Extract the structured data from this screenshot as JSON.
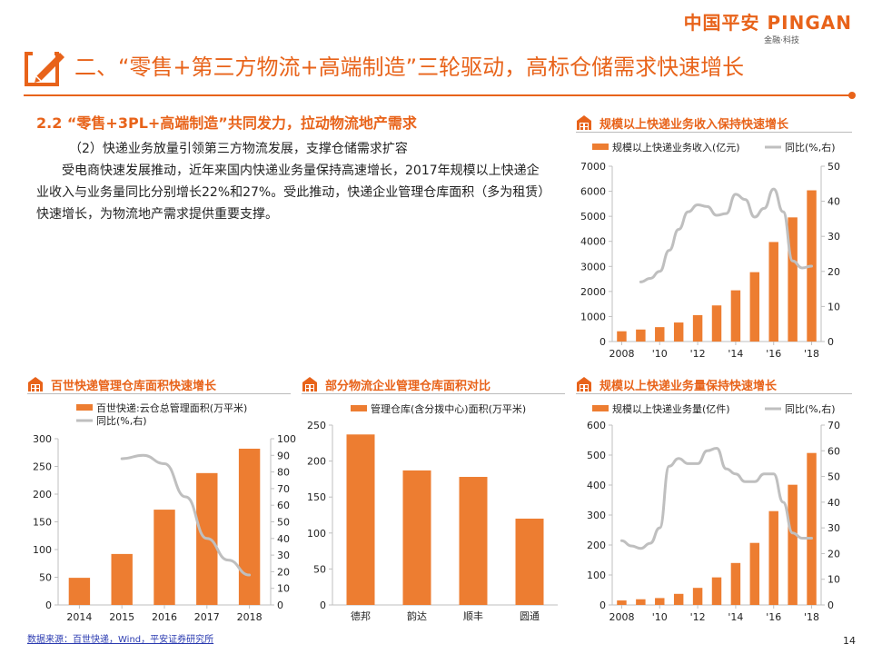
{
  "header": {
    "logo_text": "中国平安 PINGAN",
    "logo_sub": "金融·科技",
    "title": "二、“零售+第三方物流+高端制造”三轮驱动，高标仓储需求快速增长"
  },
  "section": {
    "heading": "2.2 “零售+3PL+高端制造”共同发力，拉动物流地产需求",
    "subheading": "（2）快递业务放量引领第三方物流发展，支撑仓储需求扩容",
    "body": "受电商快速发展推动，近年来国内快递业务量保持高速增长，2017年规模以上快递企业收入与业务量同比分别增长22%和27%。受此推动，快递企业管理仓库面积（多为租赁）快速增长，为物流地产需求提供重要支撑。"
  },
  "footer": {
    "source": "数据来源：百世快递，Wind，平安证券研究所",
    "page_number": "14"
  },
  "colors": {
    "accent": "#e8631a",
    "bar": "#ed7d31",
    "line": "#bfbfbf"
  },
  "chart_data": [
    {
      "id": "revenue",
      "type": "bar+line",
      "title": "规模以上快递业务收入保持快速增长",
      "x": [
        2008,
        2009,
        2010,
        2011,
        2012,
        2013,
        2014,
        2015,
        2016,
        2017,
        2018
      ],
      "x_tick_labels": [
        "2008",
        "'10",
        "'12",
        "'14",
        "'16",
        "'18"
      ],
      "x_tick_positions": [
        2008,
        2010,
        2012,
        2014,
        2016,
        2018
      ],
      "series": [
        {
          "name": "规模以上快递业务收入(亿元)",
          "kind": "bar",
          "axis": "left",
          "values": [
            410,
            480,
            575,
            760,
            1055,
            1442,
            2045,
            2770,
            3974,
            4957,
            6038
          ]
        },
        {
          "name": "同比(%,右)",
          "kind": "line",
          "axis": "right",
          "points": [
            [
              2009,
              17
            ],
            [
              2009.5,
              18
            ],
            [
              2010,
              20
            ],
            [
              2010.5,
              26
            ],
            [
              2011,
              32
            ],
            [
              2011.5,
              37
            ],
            [
              2012,
              39
            ],
            [
              2012.5,
              38.5
            ],
            [
              2013,
              36
            ],
            [
              2013.5,
              36.5
            ],
            [
              2014,
              42
            ],
            [
              2014.5,
              40.5
            ],
            [
              2015,
              35.5
            ],
            [
              2015.5,
              38
            ],
            [
              2016,
              43.5
            ],
            [
              2016.5,
              37
            ],
            [
              2017,
              23
            ],
            [
              2017.5,
              21
            ],
            [
              2018,
              21.5
            ]
          ]
        }
      ],
      "left_axis": {
        "min": 0,
        "max": 7000,
        "ticks": [
          0,
          1000,
          2000,
          3000,
          4000,
          5000,
          6000,
          7000
        ]
      },
      "right_axis": {
        "min": 0,
        "max": 50,
        "ticks": [
          0,
          10,
          20,
          30,
          40,
          50
        ]
      },
      "legend": "top"
    },
    {
      "id": "best",
      "type": "bar+line",
      "title": "百世快递管理仓库面积快速增长",
      "x": [
        2014,
        2015,
        2016,
        2017,
        2018
      ],
      "x_tick_labels": [
        "2014",
        "2015",
        "2016",
        "2017",
        "2018"
      ],
      "series": [
        {
          "name": "百世快递:云仓总管理面积(万平米)",
          "kind": "bar",
          "axis": "left",
          "values": [
            49,
            92,
            172,
            238,
            282
          ]
        },
        {
          "name": "同比(%,右)",
          "kind": "line",
          "axis": "right",
          "points": [
            [
              2015,
              88
            ],
            [
              2015.5,
              90
            ],
            [
              2016,
              85
            ],
            [
              2016.5,
              65
            ],
            [
              2017,
              40
            ],
            [
              2017.5,
              27
            ],
            [
              2018,
              18
            ]
          ]
        }
      ],
      "left_axis": {
        "min": 0,
        "max": 300,
        "ticks": [
          0,
          50,
          100,
          150,
          200,
          250,
          300
        ]
      },
      "right_axis": {
        "min": 0,
        "max": 100,
        "ticks": [
          0,
          10,
          20,
          30,
          40,
          50,
          60,
          70,
          80,
          90,
          100
        ]
      },
      "legend": "top"
    },
    {
      "id": "warehouse",
      "type": "bar",
      "title": "部分物流企业管理仓库面积对比",
      "categories": [
        "德邦",
        "韵达",
        "顺丰",
        "圆通"
      ],
      "series": [
        {
          "name": "管理仓库(含分拨中心)面积(万平米)",
          "kind": "bar",
          "axis": "left",
          "values": [
            237,
            187,
            178,
            120
          ]
        }
      ],
      "left_axis": {
        "min": 0,
        "max": 250,
        "ticks": [
          0,
          50,
          100,
          150,
          200,
          250
        ]
      },
      "legend": "top"
    },
    {
      "id": "volume",
      "type": "bar+line",
      "title": "规模以上快递业务量保持快速增长",
      "x": [
        2008,
        2009,
        2010,
        2011,
        2012,
        2013,
        2014,
        2015,
        2016,
        2017,
        2018
      ],
      "x_tick_labels": [
        "2008",
        "'10",
        "'12",
        "'14",
        "'16",
        "'18"
      ],
      "x_tick_positions": [
        2008,
        2010,
        2012,
        2014,
        2016,
        2018
      ],
      "series": [
        {
          "name": "规模以上快递业务量(亿件)",
          "kind": "bar",
          "axis": "left",
          "values": [
            15,
            19,
            23,
            37,
            57,
            92,
            140,
            207,
            313,
            401,
            507
          ]
        },
        {
          "name": "同比(%,右)",
          "kind": "line",
          "axis": "right",
          "points": [
            [
              2008,
              25
            ],
            [
              2008.5,
              23
            ],
            [
              2009,
              22
            ],
            [
              2009.5,
              24
            ],
            [
              2010,
              30
            ],
            [
              2010.5,
              54
            ],
            [
              2011,
              57
            ],
            [
              2011.5,
              55
            ],
            [
              2012,
              55
            ],
            [
              2012.5,
              60
            ],
            [
              2013,
              61
            ],
            [
              2013.5,
              53
            ],
            [
              2014,
              51
            ],
            [
              2014.5,
              48
            ],
            [
              2015,
              48
            ],
            [
              2015.5,
              51
            ],
            [
              2016,
              51
            ],
            [
              2016.5,
              40
            ],
            [
              2017,
              28
            ],
            [
              2017.5,
              26
            ],
            [
              2018,
              26
            ]
          ]
        }
      ],
      "left_axis": {
        "min": 0,
        "max": 600,
        "ticks": [
          0,
          100,
          200,
          300,
          400,
          500,
          600
        ]
      },
      "right_axis": {
        "min": 0,
        "max": 70,
        "ticks": [
          0,
          10,
          20,
          30,
          40,
          50,
          60,
          70
        ]
      },
      "legend": "top"
    }
  ]
}
